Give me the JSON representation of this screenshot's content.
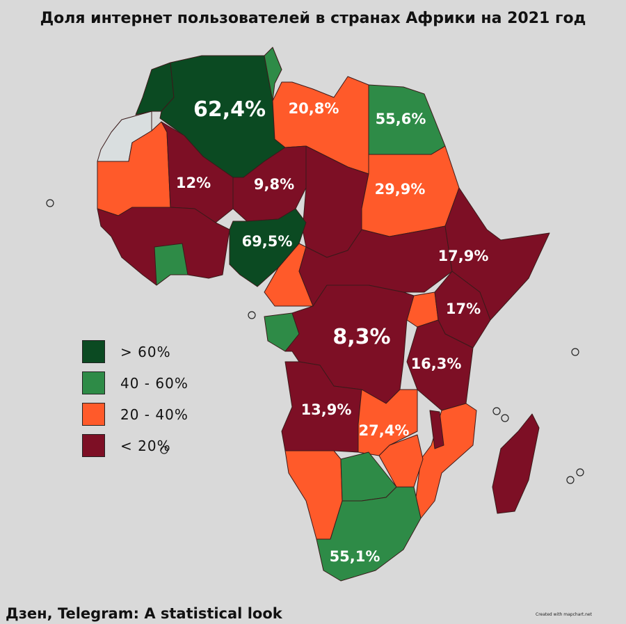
{
  "title": "Доля интернет пользователей в странах Африки на 2021 год",
  "footer": "Дзен, Telegram: A statistical look",
  "credit": "Created with mapchart.net",
  "colors": {
    "gt60": "#0b4a22",
    "40_60": "#2e8b47",
    "20_40": "#ff5a2a",
    "lt20": "#7d0f25",
    "nodata": "#d9dedf",
    "background": "#d9d9d9"
  },
  "legend": [
    {
      "label": "> 60%",
      "color": "#0b4a22"
    },
    {
      "label": "40 - 60%",
      "color": "#2e8b47"
    },
    {
      "label": "20 - 40%",
      "color": "#ff5a2a"
    },
    {
      "label": "< 20%",
      "color": "#7d0f25"
    }
  ],
  "labels": {
    "algeria": "62,4%",
    "libya": "20,8%",
    "egypt": "55,6%",
    "mali": "12%",
    "niger": "9,8%",
    "sudan": "29,9%",
    "nigeria": "69,5%",
    "ethiopia": "17,9%",
    "kenya": "17%",
    "drc": "8,3%",
    "tanzania": "16,3%",
    "angola": "13,9%",
    "zambia": "27,4%",
    "south_africa": "55,1%"
  }
}
